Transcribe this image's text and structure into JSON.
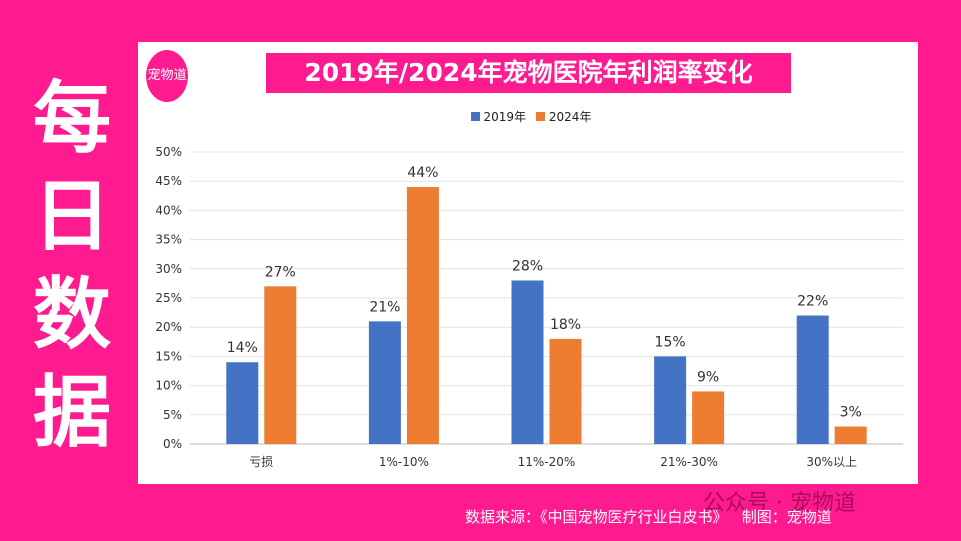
{
  "side_title": [
    "每",
    "日",
    "数",
    "据"
  ],
  "logo_text": "宠物道",
  "footer": {
    "source": "数据来源：《中国宠物医疗行业白皮书》   制图：宠物道",
    "watermark": "公众号 · 宠物道"
  },
  "colors": {
    "bg": "#fe1a8f",
    "s2019": "#4472c4",
    "s2024": "#ed7d31"
  },
  "chart_data": {
    "type": "bar",
    "title": "2019年/2024年宠物医院年利润率变化",
    "categories": [
      "亏损",
      "1%-10%",
      "11%-20%",
      "21%-30%",
      "30%以上"
    ],
    "series": [
      {
        "name": "2019年",
        "values": [
          14,
          21,
          28,
          15,
          22
        ],
        "labels": [
          "14%",
          "21%",
          "28%",
          "15%",
          "22%"
        ]
      },
      {
        "name": "2024年",
        "values": [
          27,
          44,
          18,
          9,
          3
        ],
        "labels": [
          "27%",
          "44%",
          "18%",
          "9%",
          "3%"
        ]
      }
    ],
    "yticks": [
      "0%",
      "5%",
      "10%",
      "15%",
      "20%",
      "25%",
      "30%",
      "35%",
      "40%",
      "45%",
      "50%"
    ],
    "ylim": [
      0,
      50
    ],
    "legend": "top-center",
    "grid": true
  }
}
